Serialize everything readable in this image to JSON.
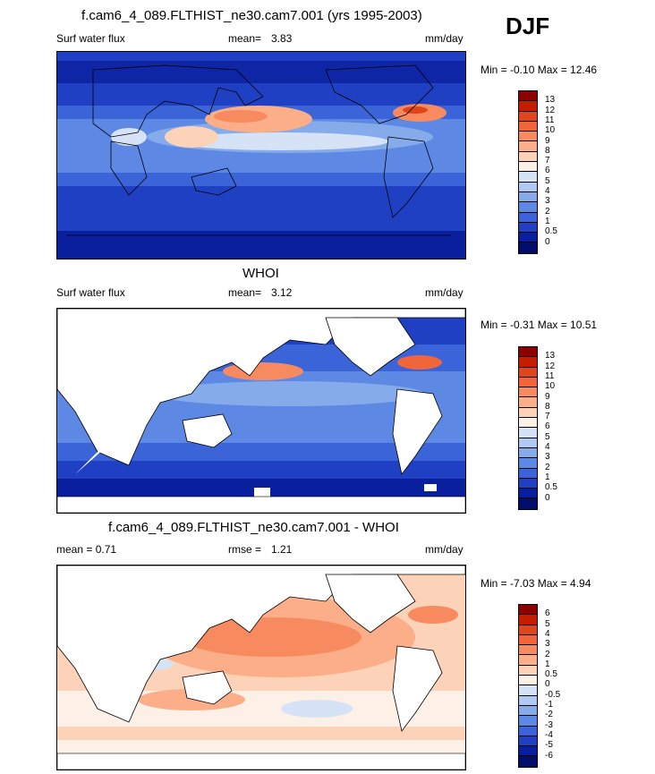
{
  "season": "DJF",
  "panels": [
    {
      "title": "f.cam6_4_089.FLTHIST_ne30.cam7.001 (yrs 1995-2003)",
      "left_label": "Surf water flux",
      "mean_label": "mean=",
      "mean_value": "3.83",
      "units": "mm/day",
      "minmax_label": "Min =  -0.10 Max =  12.46"
    },
    {
      "title": "WHOI",
      "left_label": "Surf water flux",
      "mean_label": "mean=",
      "mean_value": "3.12",
      "units": "mm/day",
      "minmax_label": "Min =  -0.31 Max =  10.51"
    },
    {
      "title": "f.cam6_4_089.FLTHIST_ne30.cam7.001 - WHOI",
      "left_label": "mean =   0.71",
      "mean_label": "rmse =",
      "mean_value": "1.21",
      "units": "mm/day",
      "minmax_label": "Min =  -7.03 Max =   4.94"
    }
  ],
  "colorbar_abs": {
    "levels": [
      "13",
      "12",
      "11",
      "10",
      "9",
      "8",
      "7",
      "6",
      "5",
      "4",
      "3",
      "2",
      "1",
      "0.5",
      "0"
    ],
    "colors": [
      "#8b0000",
      "#c41d00",
      "#e0451c",
      "#f0663a",
      "#f78a5e",
      "#fbae88",
      "#fcd2b8",
      "#fdf0e6",
      "#d6e3f7",
      "#aecaf2",
      "#86abeb",
      "#5d88e3",
      "#3a64d8",
      "#1f40c2",
      "#0a1f9e",
      "#000d6b"
    ]
  },
  "colorbar_diff": {
    "levels": [
      "6",
      "5",
      "4",
      "3",
      "2",
      "1",
      "0.5",
      "0",
      "-0.5",
      "-1",
      "-2",
      "-3",
      "-4",
      "-5",
      "-6"
    ],
    "colors": [
      "#8b0000",
      "#c41d00",
      "#e0451c",
      "#f0663a",
      "#f78a5e",
      "#fbae88",
      "#fcd2b8",
      "#fdf0e6",
      "#d6e3f7",
      "#aecaf2",
      "#86abeb",
      "#5d88e3",
      "#3a64d8",
      "#1f40c2",
      "#0a1f9e",
      "#000d6b"
    ]
  }
}
